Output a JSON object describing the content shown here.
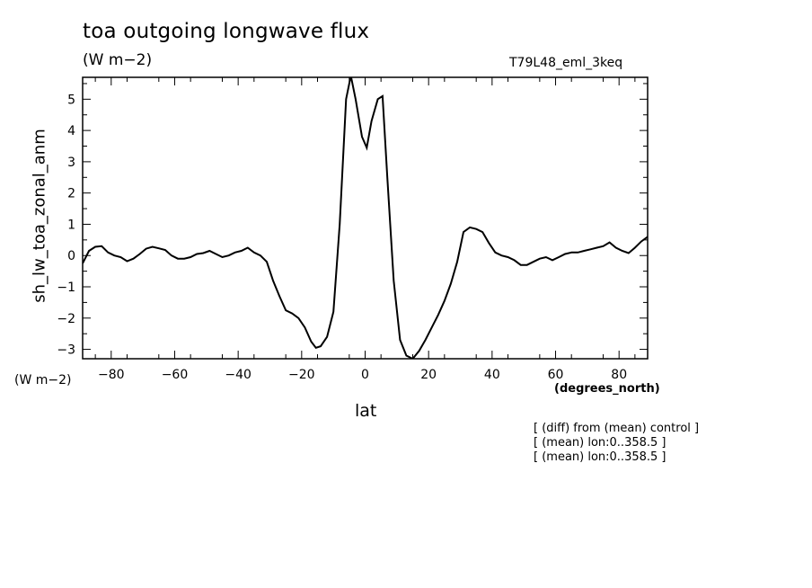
{
  "chart_data": {
    "type": "line",
    "title": "toa outgoing longwave flux",
    "units": "(W m−2)",
    "run_label": "T79L48_eml_3keq",
    "xlabel": "lat",
    "ylabel": "sh_lw_toa_zonal_anm",
    "x_units": "(degrees_north)",
    "y_units": "(W m−2)",
    "xlim": [
      -89,
      89
    ],
    "ylim": [
      -3.3,
      5.7
    ],
    "x_ticks": [
      -80,
      -60,
      -40,
      -20,
      0,
      20,
      40,
      60,
      80
    ],
    "x_tick_labels": [
      "−80",
      "−60",
      "−40",
      "−20",
      "0",
      "20",
      "40",
      "60",
      "80"
    ],
    "y_ticks": [
      -3,
      -2,
      -1,
      0,
      1,
      2,
      3,
      4,
      5
    ],
    "y_tick_labels": [
      "−3",
      "−2",
      "−1",
      "0",
      "1",
      "2",
      "3",
      "4",
      "5"
    ],
    "grid": false,
    "series": [
      {
        "x": [
          -89,
          -87,
          -85,
          -83,
          -81,
          -79,
          -77,
          -75,
          -73,
          -71,
          -69,
          -67,
          -65,
          -63,
          -61,
          -59,
          -57,
          -55,
          -53,
          -51,
          -49,
          -47,
          -45,
          -43,
          -41,
          -39,
          -37,
          -35,
          -33,
          -31,
          -29,
          -27,
          -25,
          -23,
          -21,
          -19,
          -17,
          -15.5,
          -14,
          -12,
          -10,
          -8,
          -6,
          -4.5,
          -3,
          -1,
          0.5,
          2,
          4,
          5.5,
          7,
          9,
          11,
          13,
          15,
          17,
          19,
          21,
          23,
          25,
          27,
          29,
          31,
          33,
          35,
          37,
          39,
          41,
          43,
          45,
          47,
          49,
          51,
          53,
          55,
          57,
          59,
          61,
          63,
          65,
          67,
          69,
          71,
          73,
          75,
          77,
          79,
          81,
          83,
          85,
          87,
          89
        ],
        "y": [
          -0.25,
          0.15,
          0.28,
          0.3,
          0.1,
          0.0,
          -0.05,
          -0.18,
          -0.1,
          0.05,
          0.22,
          0.28,
          0.23,
          0.18,
          0.0,
          -0.1,
          -0.1,
          -0.05,
          0.05,
          0.08,
          0.15,
          0.05,
          -0.05,
          0.0,
          0.1,
          0.15,
          0.25,
          0.1,
          0.0,
          -0.2,
          -0.8,
          -1.3,
          -1.75,
          -1.85,
          -2.0,
          -2.3,
          -2.75,
          -2.95,
          -2.9,
          -2.6,
          -1.8,
          1.0,
          5.0,
          5.75,
          5.0,
          3.8,
          3.45,
          4.3,
          5.0,
          5.1,
          2.5,
          -0.8,
          -2.7,
          -3.2,
          -3.3,
          -3.05,
          -2.7,
          -2.3,
          -1.9,
          -1.45,
          -0.9,
          -0.2,
          0.75,
          0.9,
          0.85,
          0.75,
          0.4,
          0.1,
          0.0,
          -0.05,
          -0.15,
          -0.3,
          -0.3,
          -0.2,
          -0.1,
          -0.05,
          -0.15,
          -0.05,
          0.05,
          0.1,
          0.1,
          0.15,
          0.2,
          0.25,
          0.3,
          0.42,
          0.25,
          0.15,
          0.08,
          0.25,
          0.45,
          0.6
        ]
      }
    ]
  },
  "notes": [
    "[ (diff) from (mean) control ]",
    "[ (mean) lon:0..358.5 ]",
    "[ (mean) lon:0..358.5 ]"
  ]
}
